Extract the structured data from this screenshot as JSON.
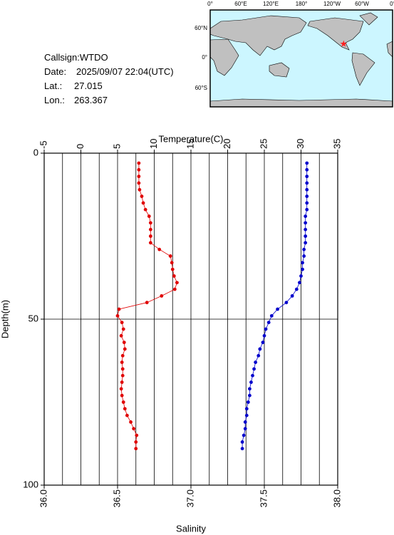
{
  "info": [
    {
      "label": "Callsign:",
      "value": "WTDO"
    },
    {
      "label": "Date:",
      "value": "2025/09/07 22:04(UTC)"
    },
    {
      "label": "Lat.:",
      "value": 27.015
    },
    {
      "label": "Lon.:",
      "value": 263.367
    }
  ],
  "map": {
    "lon_labels": [
      "0°",
      "60°E",
      "120°E",
      "180°",
      "120°W",
      "60°W",
      "0°"
    ],
    "lat_labels": [
      "60°N",
      "0°",
      "60°S"
    ]
  },
  "chart_data": {
    "type": "line",
    "x_label": "Salinity",
    "x2_label": "Temperature(C)",
    "y_label": "Depth(m)",
    "xlim": [
      36,
      38
    ],
    "xticks": [
      {
        "value": 36,
        "label": "36.0"
      },
      {
        "value": 36.5,
        "label": "36.5"
      },
      {
        "value": 37,
        "label": "37.0"
      },
      {
        "value": 37.5,
        "label": "37.5"
      },
      {
        "value": 38,
        "label": "38.0"
      }
    ],
    "x2lim": [
      -5,
      35
    ],
    "x2ticks": [
      -5,
      0,
      5,
      10,
      15,
      20,
      25,
      30,
      35
    ],
    "x2grid": [
      -2.5,
      0,
      2.5,
      5,
      7.5,
      10,
      12.5,
      15,
      17.5,
      20,
      22.5,
      25,
      27.5,
      30,
      32.5
    ],
    "ylim": [
      0,
      100
    ],
    "yticks": [
      0,
      50,
      100
    ],
    "ygrid": [
      50
    ],
    "y_inverted": true,
    "y": [
      3,
      5,
      7,
      9,
      11,
      13,
      15,
      17,
      19,
      21,
      23,
      25,
      27,
      29,
      31,
      33,
      35,
      37,
      39,
      41,
      43,
      45,
      47,
      49,
      51,
      53,
      55,
      57,
      59,
      61,
      63,
      65,
      67,
      69,
      71,
      73,
      75,
      77,
      79,
      81,
      83,
      85,
      87,
      89
    ],
    "series": [
      {
        "color": "#e00000",
        "axis": "x2",
        "values": [
          7.9,
          7.9,
          7.9,
          7.9,
          8.0,
          8.3,
          8.5,
          8.8,
          9.3,
          9.5,
          9.5,
          9.5,
          9.5,
          10.7,
          12.2,
          12.4,
          12.5,
          12.7,
          13.1,
          12.8,
          11.0,
          9.0,
          5.2,
          5.0,
          5.6,
          5.8,
          5.5,
          5.9,
          6.0,
          5.7,
          5.6,
          5.7,
          5.7,
          5.6,
          5.5,
          5.6,
          5.8,
          6.0,
          6.3,
          6.8,
          7.2,
          7.6,
          7.5,
          7.5
        ]
      },
      {
        "color": "#0000cc",
        "values": [
          37.79,
          37.79,
          37.79,
          37.79,
          37.79,
          37.79,
          37.79,
          37.79,
          37.78,
          37.78,
          37.78,
          37.78,
          37.78,
          37.77,
          37.77,
          37.76,
          37.76,
          37.75,
          37.74,
          37.72,
          37.69,
          37.65,
          37.59,
          37.55,
          37.53,
          37.51,
          37.5,
          37.49,
          37.47,
          37.46,
          37.44,
          37.43,
          37.42,
          37.41,
          37.4,
          37.4,
          37.39,
          37.38,
          37.38,
          37.37,
          37.37,
          37.36,
          37.35,
          37.35
        ]
      }
    ]
  }
}
